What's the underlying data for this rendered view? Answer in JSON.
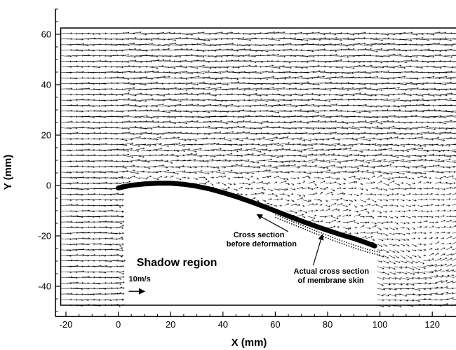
{
  "chart_data": {
    "type": "vector-field",
    "title": "",
    "xlabel": "X (mm)",
    "ylabel": "Y (mm)",
    "xlim": [
      -24,
      132
    ],
    "ylim": [
      -52,
      70
    ],
    "x_ticks": [
      -20,
      0,
      20,
      40,
      60,
      80,
      100,
      120
    ],
    "y_ticks": [
      60,
      40,
      20,
      0,
      -20,
      -40
    ],
    "x_tick_labels": [
      "-20",
      "0",
      "20",
      "40",
      "60",
      "80",
      "100",
      "120"
    ],
    "y_tick_labels": [
      "60",
      "40",
      "20",
      "0",
      "-20",
      "-40"
    ],
    "field_extent": {
      "x": [
        -22,
        130
      ],
      "y": [
        -47.5,
        62.5
      ]
    },
    "reference_vector": {
      "label": "10m/s",
      "x": 4,
      "y": -42,
      "u": 10
    },
    "membrane_actual": {
      "x": [
        0,
        5,
        10,
        15,
        20,
        25,
        30,
        35,
        40,
        45,
        50,
        55,
        60,
        65,
        70,
        75,
        80,
        85,
        90,
        95,
        98
      ],
      "y": [
        -1.0,
        0.1,
        0.6,
        0.9,
        0.9,
        0.5,
        -0.3,
        -1.4,
        -2.8,
        -4.4,
        -6.2,
        -8.1,
        -10.1,
        -12.1,
        -14.1,
        -16.0,
        -17.8,
        -19.5,
        -21.0,
        -22.8,
        -24.0
      ]
    },
    "membrane_before": {
      "x": [
        60,
        65,
        70,
        75,
        80,
        85,
        90,
        95,
        100
      ],
      "y": [
        -11.5,
        -13.6,
        -15.7,
        -17.8,
        -19.8,
        -21.8,
        -23.6,
        -25.3,
        -26.5
      ]
    },
    "annotations": [
      {
        "name": "cross-section-before",
        "lines": [
          "Cross section",
          "before deformation"
        ],
        "x": 44,
        "y": -20.5,
        "arrow_to": [
          53,
          -11.5
        ]
      },
      {
        "name": "actual-cross-section",
        "lines": [
          "Actual cross section",
          "of membrane skin"
        ],
        "x": 67,
        "y": -35,
        "arrow_to": [
          78,
          -19.5
        ]
      },
      {
        "name": "shadow-region",
        "lines": [
          "Shadow region"
        ],
        "x": 7,
        "y": -32
      }
    ]
  }
}
